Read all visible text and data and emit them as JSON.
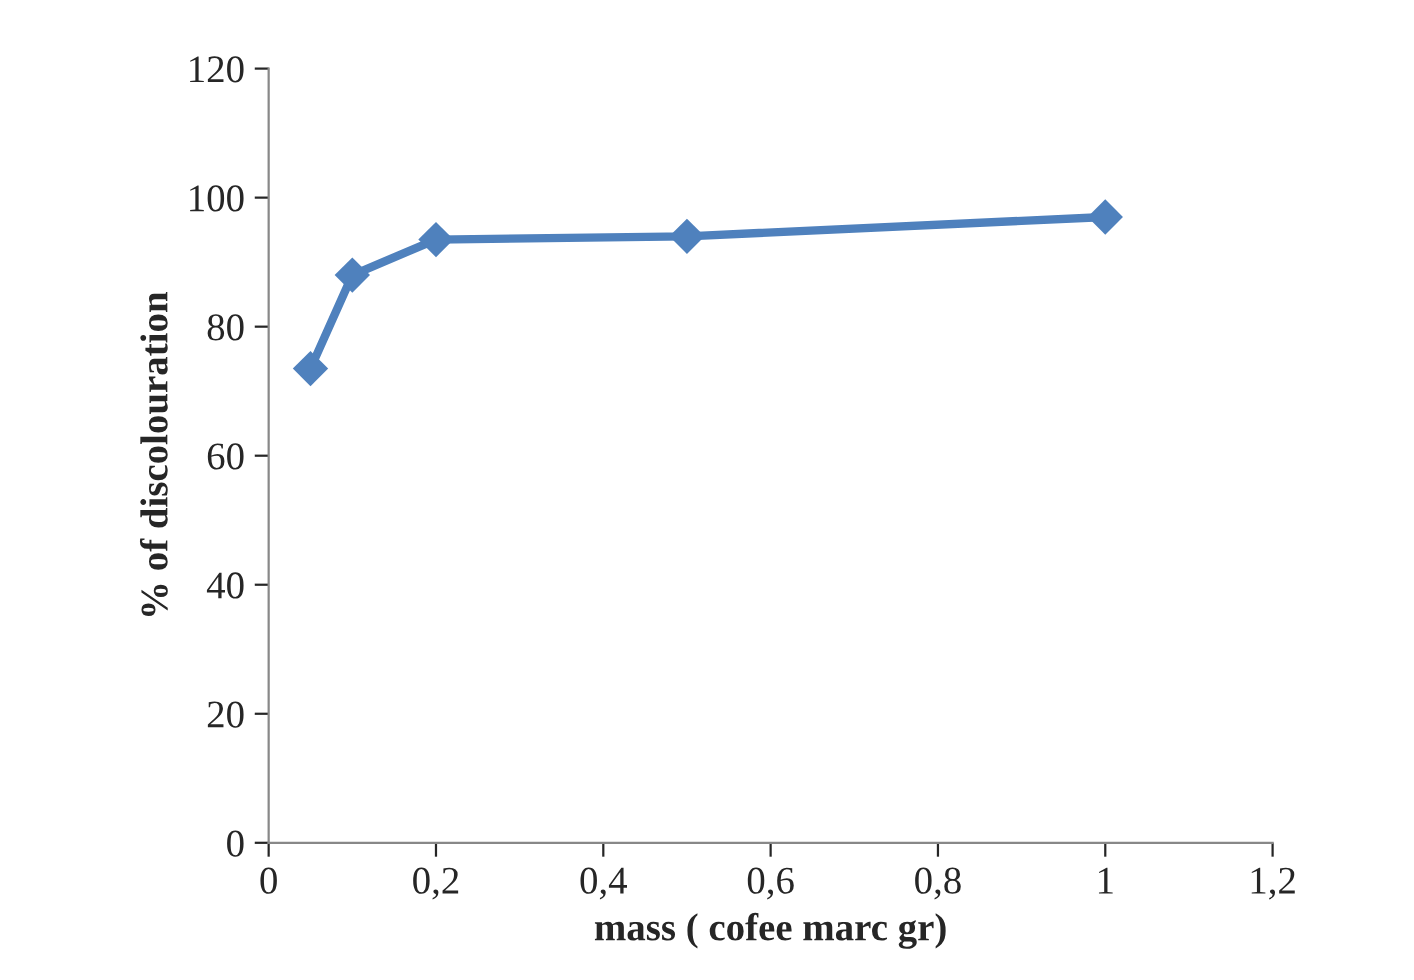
{
  "chart_data": {
    "type": "line",
    "xlabel": "mass ( cofee marc gr)",
    "ylabel": "% of discolouration",
    "x": [
      0.05,
      0.1,
      0.2,
      0.5,
      1
    ],
    "series": [
      {
        "color": "#4f81bd",
        "values": [
          73.5,
          88,
          93.5,
          94,
          97
        ]
      }
    ],
    "xlim": [
      0,
      1.2
    ],
    "xticks": [
      0,
      {
        "value": 0.2,
        "label": "0,2"
      },
      {
        "value": 0.4,
        "label": "0,4"
      },
      {
        "value": 0.6,
        "label": "0,6"
      },
      {
        "value": 0.8,
        "label": "0,8"
      },
      1,
      {
        "value": 1.2,
        "label": "1,2"
      }
    ],
    "ylim": [
      0,
      120
    ],
    "yticks": [
      0,
      20,
      40,
      60,
      80,
      100,
      120
    ],
    "grid": false,
    "marker": "diamond",
    "line_style": "solid"
  }
}
